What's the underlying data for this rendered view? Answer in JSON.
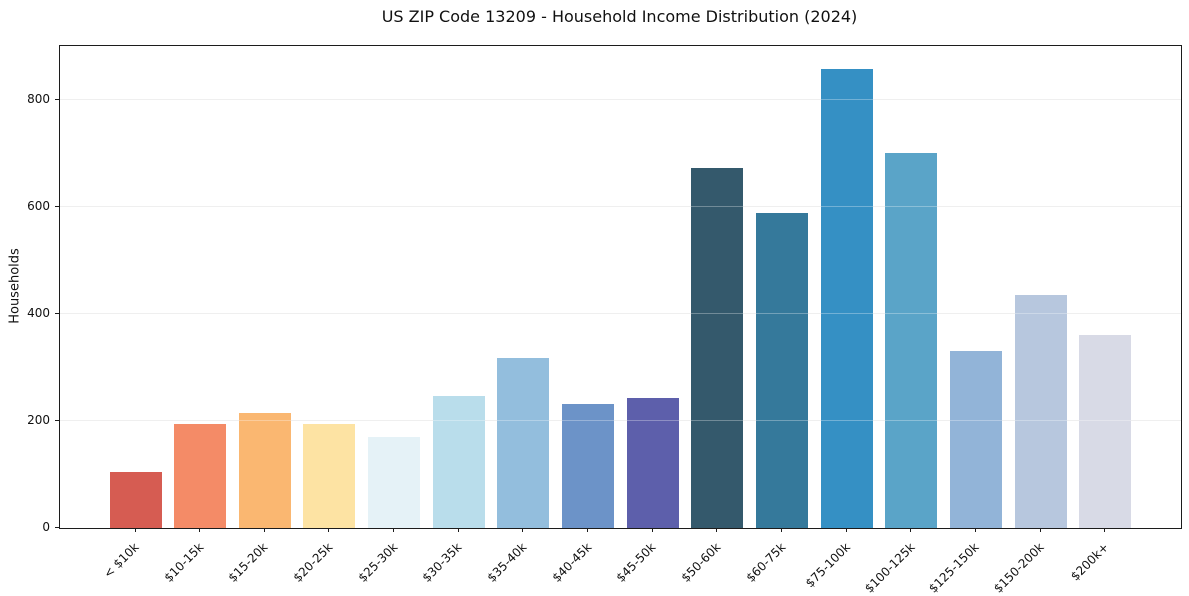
{
  "chart_data": {
    "type": "bar",
    "title": "US ZIP Code 13209 - Household Income Distribution (2024)",
    "xlabel": "",
    "ylabel": "Households",
    "categories": [
      "< $10k",
      "$10-15k",
      "$15-20k",
      "$20-25k",
      "$25-30k",
      "$30-35k",
      "$35-40k",
      "$40-45k",
      "$45-50k",
      "$50-60k",
      "$60-75k",
      "$75-100k",
      "$100-125k",
      "$125-150k",
      "$150-200k",
      "$200k+"
    ],
    "values": [
      105,
      195,
      215,
      195,
      170,
      247,
      318,
      232,
      243,
      672,
      589,
      858,
      700,
      330,
      435,
      360
    ],
    "bar_colors": [
      "#d65c52",
      "#f48b67",
      "#fab771",
      "#fde3a3",
      "#e5f2f7",
      "#b9ddeb",
      "#93bedd",
      "#6c93c8",
      "#5d5fab",
      "#34596c",
      "#35799b",
      "#3590c4",
      "#5aa4c8",
      "#92b4d8",
      "#b7c7de",
      "#d8dae6"
    ],
    "yticks": [
      0,
      200,
      400,
      600,
      800
    ],
    "ylim": [
      0,
      900
    ],
    "grid": "horizontal",
    "legend": "none"
  },
  "styles": {
    "background_color": "#ffffff",
    "grid_color": "#e9e9e9",
    "spine_color": "#1c1c1c",
    "text_color": "#111111"
  }
}
